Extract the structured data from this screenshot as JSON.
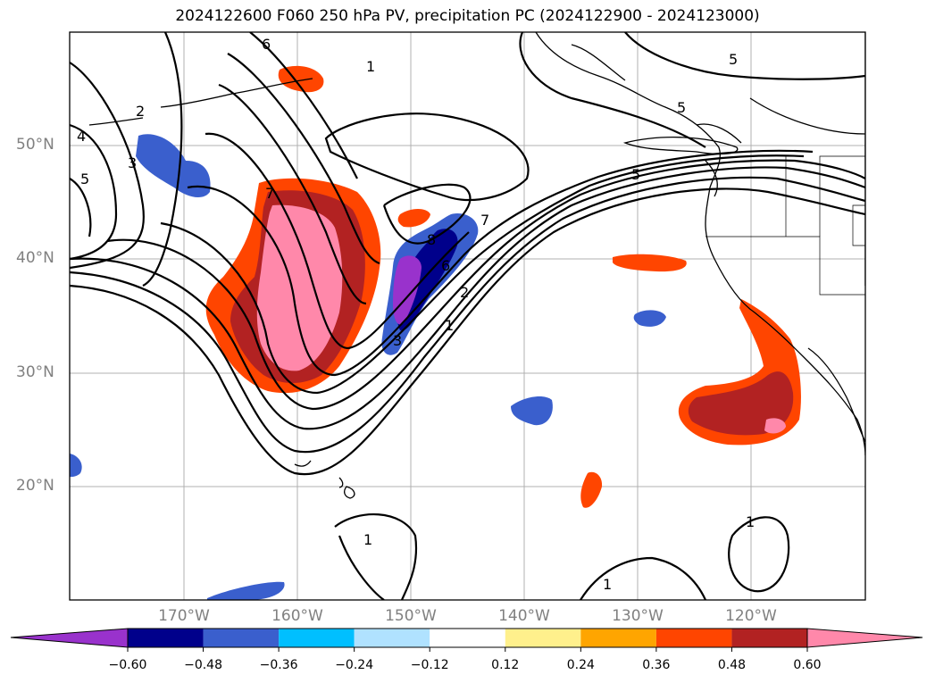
{
  "title": "2024122600 F060 250 hPa PV, precipitation PC (2024122900 - 2024123000)",
  "axes": {
    "lat_labels": [
      "50°N",
      "40°N",
      "30°N",
      "20°N"
    ],
    "lon_labels": [
      "170°W",
      "160°W",
      "150°W",
      "140°W",
      "130°W",
      "120°W"
    ]
  },
  "pv_contour_labels": [
    "6",
    "5",
    "5",
    "2",
    "4",
    "3",
    "5",
    "5",
    "7",
    "7",
    "8",
    "6",
    "2",
    "1",
    "3",
    "1",
    "1",
    "1",
    "1"
  ],
  "colorbar": {
    "ticks": [
      "−0.60",
      "−0.48",
      "−0.36",
      "−0.24",
      "−0.12",
      "0.12",
      "0.24",
      "0.36",
      "0.48",
      "0.60"
    ],
    "colors": [
      "#9932cc",
      "#00008b",
      "#3a5fcd",
      "#00bfff",
      "#b0e2ff",
      "#ffffff",
      "#fff08c",
      "#ffa500",
      "#ff4500",
      "#b22222",
      "#ff88aa"
    ]
  },
  "palette": {
    "neg_strong": "#9932cc",
    "neg_2": "#00008b",
    "neg_3": "#3a5fcd",
    "neg_4": "#00bfff",
    "pos_2": "#ffa500",
    "pos_3": "#ff4500",
    "pos_4": "#b22222",
    "pos_5": "#ff88aa"
  }
}
